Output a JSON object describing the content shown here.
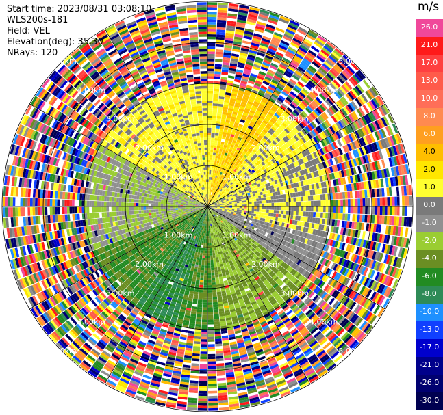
{
  "header": {
    "start_time": "Start time: 2023/08/31 03:08:10",
    "instrument": "WLS200s-181",
    "field": "Field: VEL",
    "elevation": "Elevation(deg): 35.30",
    "nrays": "NRays: 120"
  },
  "colorbar": {
    "unit": "m/s",
    "levels": [
      {
        "label": "26.0",
        "color": "#f0489a",
        "text_color": "#ffffff"
      },
      {
        "label": "21.0",
        "color": "#ff1a1a",
        "text_color": "#ffffff"
      },
      {
        "label": "17.0",
        "color": "#ff4040",
        "text_color": "#ffffff"
      },
      {
        "label": "13.0",
        "color": "#ff5a4a",
        "text_color": "#ffffff"
      },
      {
        "label": "10.0",
        "color": "#ff6e58",
        "text_color": "#ffffff"
      },
      {
        "label": "8.0",
        "color": "#ff8a50",
        "text_color": "#ffffff"
      },
      {
        "label": "6.0",
        "color": "#ff9f20",
        "text_color": "#ffffff"
      },
      {
        "label": "4.0",
        "color": "#ffbe00",
        "text_color": "#000000"
      },
      {
        "label": "2.0",
        "color": "#ffe600",
        "text_color": "#000000"
      },
      {
        "label": "1.0",
        "color": "#ffff30",
        "text_color": "#000000"
      },
      {
        "label": "0.0",
        "color": "#7a7a7a",
        "text_color": "#ffffff"
      },
      {
        "label": "-1.0",
        "color": "#909090",
        "text_color": "#ffffff"
      },
      {
        "label": "-2.0",
        "color": "#9acd32",
        "text_color": "#ffffff"
      },
      {
        "label": "-4.0",
        "color": "#6b8e23",
        "text_color": "#ffffff"
      },
      {
        "label": "-6.0",
        "color": "#228b22",
        "text_color": "#ffffff"
      },
      {
        "label": "-8.0",
        "color": "#2e8b57",
        "text_color": "#ffffff"
      },
      {
        "label": "-10.0",
        "color": "#1e90ff",
        "text_color": "#ffffff"
      },
      {
        "label": "-13.0",
        "color": "#1040ff",
        "text_color": "#ffffff"
      },
      {
        "label": "-17.0",
        "color": "#0000cd",
        "text_color": "#ffffff"
      },
      {
        "label": "-21.0",
        "color": "#00008b",
        "text_color": "#ffffff"
      },
      {
        "label": "-26.0",
        "color": "#000070",
        "text_color": "#ffffff"
      },
      {
        "label": "-30.0",
        "color": "#000050",
        "text_color": "#ffffff"
      }
    ]
  },
  "chart_data": {
    "type": "heatmap",
    "projection": "polar-ppi",
    "field": "VEL",
    "unit": "m/s",
    "elevation_deg": 35.3,
    "nrays": 120,
    "range_rings_km": [
      1.0,
      2.0,
      3.0,
      4.0,
      5.0
    ],
    "ring_labels": [
      "1.00km",
      "2.00km",
      "3.00km",
      "4.00km",
      "5.00km"
    ],
    "max_range_km": 5.0,
    "valid_data_range_km": 3.0,
    "spokes_deg": [
      0,
      30,
      60,
      90,
      120,
      150,
      180,
      210,
      240,
      270,
      300,
      330
    ],
    "sectors": [
      {
        "from_az": 300,
        "to_az": 60,
        "value_ms": 1.5
      },
      {
        "from_az": 10,
        "to_az": 40,
        "value_ms": 4.0
      },
      {
        "from_az": 60,
        "to_az": 105,
        "value_ms": 1.0
      },
      {
        "from_az": 105,
        "to_az": 125,
        "value_ms": 0.0
      },
      {
        "from_az": 125,
        "to_az": 175,
        "value_ms": -2.0
      },
      {
        "from_az": 175,
        "to_az": 250,
        "value_ms": -4.0
      },
      {
        "from_az": 195,
        "to_az": 215,
        "value_ms": -6.0
      },
      {
        "from_az": 250,
        "to_az": 300,
        "value_ms": -1.0
      }
    ]
  }
}
